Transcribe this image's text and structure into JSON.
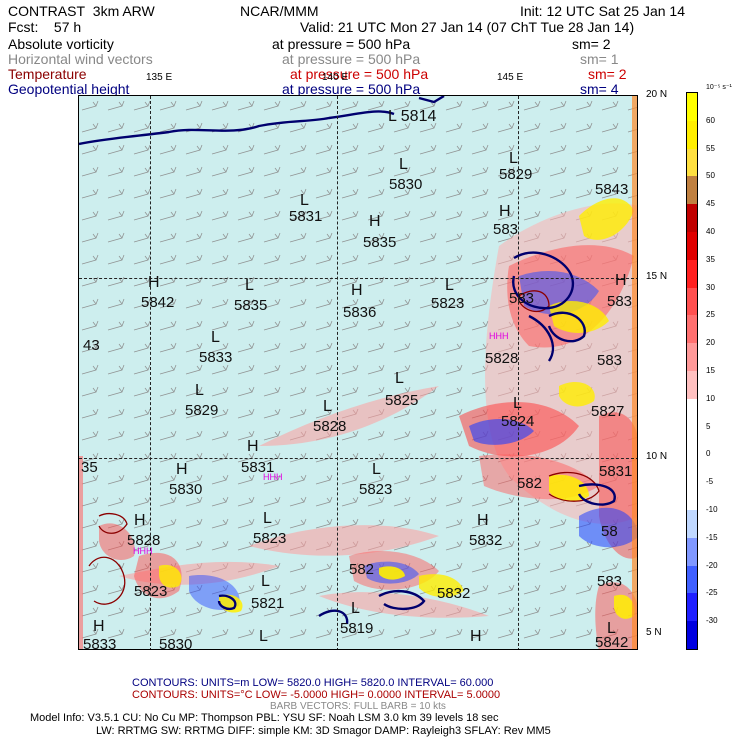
{
  "header": {
    "product": "CONTRAST",
    "model": "3km ARW",
    "org": "NCAR/MMM",
    "init": "Init: 12 UTC Sat 25 Jan 14",
    "fcst_label": "Fcst:",
    "fcst_value": "57 h",
    "valid": "Valid: 21 UTC Mon 27 Jan 14 (07 ChT Tue 28 Jan 14)"
  },
  "fields": [
    {
      "name": "Absolute vorticity",
      "pressure": "at pressure =  500 hPa",
      "sm": "sm= 2",
      "color": "#000000"
    },
    {
      "name": "Horizontal wind vectors",
      "pressure": "at pressure =  500 hPa",
      "sm": "sm= 1",
      "color": "#888888"
    },
    {
      "name": "Temperature",
      "pressure": "at pressure =  500 hPa",
      "sm": "sm= 2",
      "color": "#8b0000"
    },
    {
      "name": "Geopotential height",
      "pressure": "at pressure =  500 hPa",
      "sm": "sm= 4",
      "color": "#000080"
    }
  ],
  "axes": {
    "lon_labels": [
      "135 E",
      "140 E",
      "145 E"
    ],
    "lat_labels": [
      "20 N",
      "15 N",
      "10 N",
      "5 N"
    ]
  },
  "map_labels": [
    {
      "letter": "L",
      "value": "5814"
    },
    {
      "letter": "L",
      "value": "5830"
    },
    {
      "letter": "L",
      "value": "5829"
    },
    {
      "letter": "",
      "value": "5843"
    },
    {
      "letter": "L",
      "value": "5831"
    },
    {
      "letter": "H",
      "value": "5835"
    },
    {
      "letter": "H",
      "value": "583"
    },
    {
      "letter": "H",
      "value": "5842"
    },
    {
      "letter": "L",
      "value": "5835"
    },
    {
      "letter": "H",
      "value": "5836"
    },
    {
      "letter": "L",
      "value": "5823"
    },
    {
      "letter": "",
      "value": "583"
    },
    {
      "letter": "H",
      "value": "583"
    },
    {
      "letter": "",
      "value": "43"
    },
    {
      "letter": "L",
      "value": "5833"
    },
    {
      "letter": "",
      "value": "5828"
    },
    {
      "letter": "",
      "value": "583"
    },
    {
      "letter": "L",
      "value": "5829"
    },
    {
      "letter": "L",
      "value": "5825"
    },
    {
      "letter": "L",
      "value": "5828"
    },
    {
      "letter": "L",
      "value": "5824"
    },
    {
      "letter": "",
      "value": "5827"
    },
    {
      "letter": "H",
      "value": "5831"
    },
    {
      "letter": "",
      "value": "35"
    },
    {
      "letter": "H",
      "value": "5830"
    },
    {
      "letter": "L",
      "value": "5823"
    },
    {
      "letter": "",
      "value": "582"
    },
    {
      "letter": "",
      "value": "5831"
    },
    {
      "letter": "H",
      "value": "5828"
    },
    {
      "letter": "L",
      "value": "5823"
    },
    {
      "letter": "H",
      "value": "5832"
    },
    {
      "letter": "",
      "value": "58"
    },
    {
      "letter": "",
      "value": "5823"
    },
    {
      "letter": "L",
      "value": "5821"
    },
    {
      "letter": "",
      "value": "582"
    },
    {
      "letter": "",
      "value": "5832"
    },
    {
      "letter": "",
      "value": "583"
    },
    {
      "letter": "L",
      "value": "5819"
    },
    {
      "letter": "H",
      "value": "5833"
    },
    {
      "letter": "",
      "value": "5830"
    },
    {
      "letter": "L",
      "value": ""
    },
    {
      "letter": "H",
      "value": ""
    },
    {
      "letter": "L",
      "value": "5842"
    }
  ],
  "magenta_labels": [
    "HHH",
    "HHH",
    "HHH"
  ],
  "colorbar": {
    "unit": "10⁻⁵ s⁻¹",
    "ticks": [
      "60",
      "55",
      "50",
      "45",
      "40",
      "35",
      "30",
      "25",
      "20",
      "15",
      "10",
      "5",
      "0",
      "-5",
      "-10",
      "-15",
      "-20",
      "-25",
      "-30"
    ],
    "colors": [
      "#ffff00",
      "#ffee00",
      "#ffe040",
      "#c08040",
      "#c00000",
      "#e00000",
      "#ff2020",
      "#ff5050",
      "#ff7070",
      "#ff9999",
      "#ffc0c0",
      "#ffffff",
      "#ffffff",
      "#ffffff",
      "#ffffff",
      "#c0d8ff",
      "#8098ff",
      "#4060ff",
      "#2020ff",
      "#0000e0"
    ]
  },
  "footer": {
    "contours1": "CONTOURS:  UNITS=m   LOW=   5820.0         HIGH=   5820.0         INTERVAL=    60.000",
    "contours2": "CONTOURS:  UNITS=°C   LOW=  -5.0000        HIGH=   0.0000         INTERVAL=    5.0000",
    "barb": "BARB VECTORS:  FULL BARB = 10 kts",
    "model_info": "Model Info: V3.5.1     CU: No Cu      MP: Thompson      PBL: YSU        SF: Noah LSM       3.0 km   39 levels    18 sec",
    "model_info2": "LW: RRTMG    SW: RRTMG   DIFF: simple KM: 3D Smagor DAMP: Rayleigh3   SFLAY: Rev MM5"
  }
}
